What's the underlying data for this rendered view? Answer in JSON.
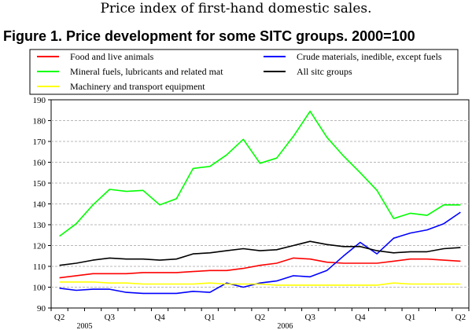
{
  "page": {
    "suptitle": "Price index of first-hand domestic sales.",
    "figure_title": "Figure 1. Price development for some SITC groups. 2000=100"
  },
  "chart_data": {
    "type": "line",
    "title": "Figure 1. Price development for some SITC groups. 2000=100",
    "xlabel": "",
    "ylabel": "",
    "ylim": [
      90,
      190
    ],
    "yticks": [
      90,
      100,
      110,
      120,
      130,
      140,
      150,
      160,
      170,
      180,
      190
    ],
    "grid": true,
    "legend_position": "top",
    "x_tick_labels": [
      {
        "label": "Q2",
        "index": 0
      },
      {
        "label": "Q3",
        "index": 3
      },
      {
        "label": "Q4",
        "index": 6
      },
      {
        "label": "Q1",
        "index": 9
      },
      {
        "label": "Q2",
        "index": 12
      },
      {
        "label": "Q3",
        "index": 15
      },
      {
        "label": "Q4",
        "index": 18
      },
      {
        "label": "Q1",
        "index": 21
      },
      {
        "label": "Q2",
        "index": 24
      }
    ],
    "year_labels": [
      {
        "label": "2005",
        "index": 1.5
      },
      {
        "label": "2006",
        "index": 13.5
      }
    ],
    "n_points": 25,
    "series": [
      {
        "name": "Food and live animals",
        "color": "#ff0000",
        "values": [
          104.5,
          105.5,
          106.5,
          106.5,
          106.5,
          107,
          107,
          107,
          107.5,
          108,
          108,
          109,
          110.5,
          111.5,
          114,
          113.5,
          112,
          111.5,
          111.5,
          111.5,
          112.5,
          113.5,
          113.5,
          113,
          112.5
        ]
      },
      {
        "name": "Crude materials, inedible, except fuels",
        "color": "#0000ff",
        "values": [
          99.5,
          98.5,
          99,
          99,
          97.5,
          97,
          97,
          97,
          98,
          97.5,
          102,
          100,
          102,
          103,
          105.5,
          105,
          108,
          115,
          121.5,
          116,
          123.5,
          126,
          127.5,
          130.5,
          136
        ]
      },
      {
        "name": "Mineral fuels, lubricants and related mat",
        "color": "#00ff00",
        "values": [
          124.5,
          130.5,
          139.5,
          147,
          146,
          146.5,
          139.5,
          142.5,
          157,
          158,
          163.5,
          171,
          159.5,
          162,
          172.5,
          184.5,
          172,
          163,
          155,
          146.5,
          133,
          135.5,
          134.5,
          139.5,
          139.5
        ]
      },
      {
        "name": "All sitc groups",
        "color": "#000000",
        "values": [
          110.5,
          111.5,
          113,
          114,
          113.5,
          113.5,
          113,
          113.5,
          116,
          116.5,
          117.5,
          118.5,
          117.5,
          118,
          120,
          122,
          120.5,
          119.5,
          119.5,
          117.5,
          116.5,
          117,
          117,
          118.5,
          119
        ]
      },
      {
        "name": "Machinery and transport equipment",
        "color": "#ffff00",
        "values": [
          102.5,
          102.5,
          102.5,
          102,
          102,
          101.5,
          101.5,
          101.5,
          101.5,
          102,
          101.5,
          101.5,
          101.5,
          101,
          101,
          101,
          101,
          101,
          101,
          101,
          102,
          101.5,
          101.5,
          101.5,
          101.5
        ]
      }
    ]
  }
}
